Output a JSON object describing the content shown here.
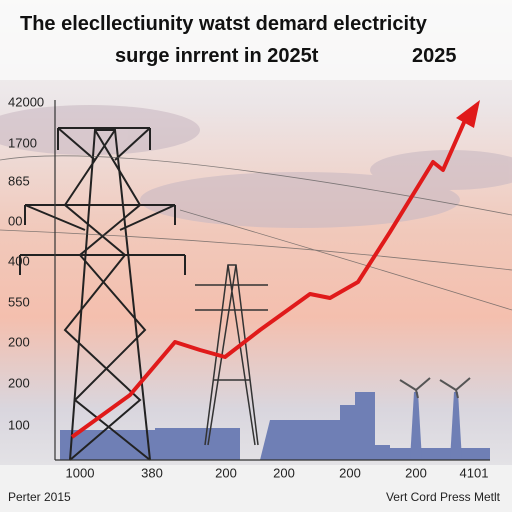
{
  "title": {
    "line1": "The elecllectiunity watst demard electricity",
    "line2": "surge inrrent in 2025t",
    "line2_right": "2025"
  },
  "y_labels": [
    "42000",
    "1700",
    "865",
    "00",
    "400",
    "550",
    "200",
    "200",
    "100"
  ],
  "x_labels": [
    "1000",
    "380",
    "200",
    "200",
    "200",
    "200",
    "4101"
  ],
  "footer": {
    "left": "Perter 2015",
    "right": "Vert Cord Press Metlt"
  }
}
